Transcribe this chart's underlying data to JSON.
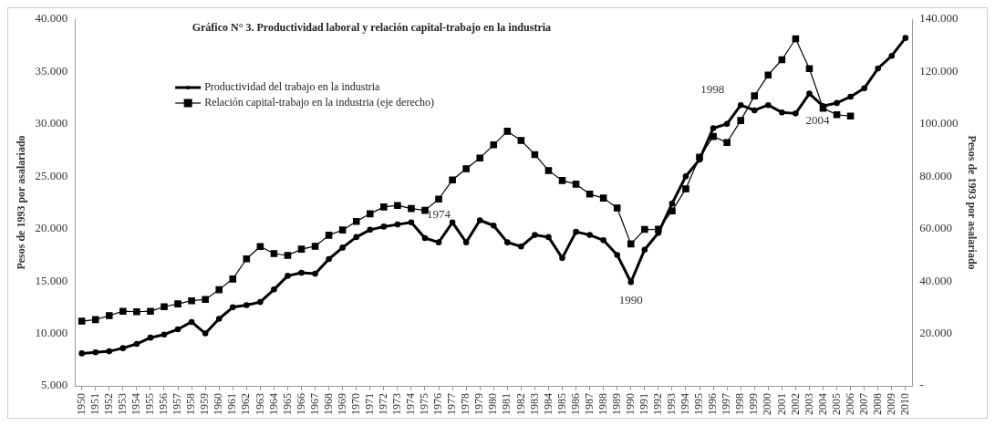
{
  "chart_data": {
    "type": "line",
    "title": "Gráfico N° 3. Productividad laboral y relación capital-trabajo en la industria",
    "ylabel": "Pesos de 1993 por asalariado",
    "y2label": "Pesos de 1993 por asalariado",
    "categories": [
      "1950",
      "1951",
      "1952",
      "1953",
      "1954",
      "1955",
      "1956",
      "1957",
      "1958",
      "1959",
      "1960",
      "1961",
      "1962",
      "1963",
      "1964",
      "1965",
      "1966",
      "1967",
      "1968",
      "1969",
      "1970",
      "1971",
      "1972",
      "1973",
      "1974",
      "1975",
      "1976",
      "1977",
      "1978",
      "1979",
      "1980",
      "1981",
      "1982",
      "1983",
      "1984",
      "1985",
      "1986",
      "1987",
      "1988",
      "1989",
      "1990",
      "1991",
      "1992",
      "1993",
      "1994",
      "1995",
      "1996",
      "1997",
      "1998",
      "1999",
      "2000",
      "2001",
      "2002",
      "2003",
      "2004",
      "2005",
      "2006",
      "2007",
      "2008",
      "2009",
      "2010"
    ],
    "series": [
      {
        "name": "Productividad del trabajo en la industria",
        "color": "#000000",
        "marker": "circle",
        "values": [
          8100,
          8200,
          8300,
          8600,
          9000,
          9600,
          9900,
          10400,
          11100,
          10000,
          11400,
          12500,
          12700,
          13000,
          14200,
          15500,
          15800,
          15700,
          17100,
          18200,
          19200,
          19900,
          20200,
          20400,
          20600,
          19100,
          18700,
          20600,
          18700,
          20800,
          20300,
          18700,
          18300,
          19400,
          19200,
          17200,
          19700,
          19400,
          18900,
          17500,
          14900,
          18000,
          19600,
          22400,
          25000,
          26600,
          29600,
          30000,
          31800,
          31300,
          31800,
          31100,
          31000,
          32900,
          31700,
          32000,
          32600,
          33400,
          35300,
          36500,
          38200
        ]
      },
      {
        "name": "Relación capital-trabajo en la industria (eje derecho)",
        "color": "#000000",
        "marker": "square",
        "axis": "y2",
        "values": [
          24700,
          25300,
          26800,
          28500,
          28300,
          28500,
          30200,
          31300,
          32500,
          33000,
          36700,
          40800,
          48500,
          53200,
          50500,
          49800,
          52200,
          53300,
          57500,
          59500,
          62800,
          65700,
          68300,
          68900,
          67700,
          67000,
          71300,
          78600,
          82900,
          87000,
          92000,
          97200,
          93700,
          88300,
          82200,
          78400,
          77000,
          73200,
          71700,
          67900,
          54200,
          59700,
          59800,
          66800,
          75200,
          87300,
          95200,
          92900,
          101300,
          110700,
          118700,
          124500,
          132500,
          121100,
          106000,
          103500,
          103000,
          null,
          null,
          null,
          null
        ]
      }
    ],
    "ylim": [
      5000,
      40000
    ],
    "yticks": [
      {
        "value": 5000,
        "label": "5.000"
      },
      {
        "value": 10000,
        "label": "10.000"
      },
      {
        "value": 15000,
        "label": "15.000"
      },
      {
        "value": 20000,
        "label": "20.000"
      },
      {
        "value": 25000,
        "label": "25.000"
      },
      {
        "value": 30000,
        "label": "30.000"
      },
      {
        "value": 35000,
        "label": "35.000"
      },
      {
        "value": 40000,
        "label": "40.000"
      }
    ],
    "y2lim": [
      0,
      140000
    ],
    "y2ticks": [
      {
        "value": 0,
        "label": "-"
      },
      {
        "value": 20000,
        "label": "20.000"
      },
      {
        "value": 40000,
        "label": "40.000"
      },
      {
        "value": 60000,
        "label": "60.000"
      },
      {
        "value": 80000,
        "label": "80.000"
      },
      {
        "value": 100000,
        "label": "100.000"
      },
      {
        "value": 120000,
        "label": "120.000"
      },
      {
        "value": 140000,
        "label": "140.000"
      }
    ],
    "annotations": [
      {
        "text": "1974",
        "x": "1974",
        "y": 20600
      },
      {
        "text": "1990",
        "x": "1990",
        "y": 14900
      },
      {
        "text": "1998",
        "x": "1998",
        "y": 31800
      },
      {
        "text": "2004",
        "x": "2004",
        "y": 31700
      }
    ],
    "legend": "top left",
    "grid": false,
    "line_style": "solid"
  }
}
